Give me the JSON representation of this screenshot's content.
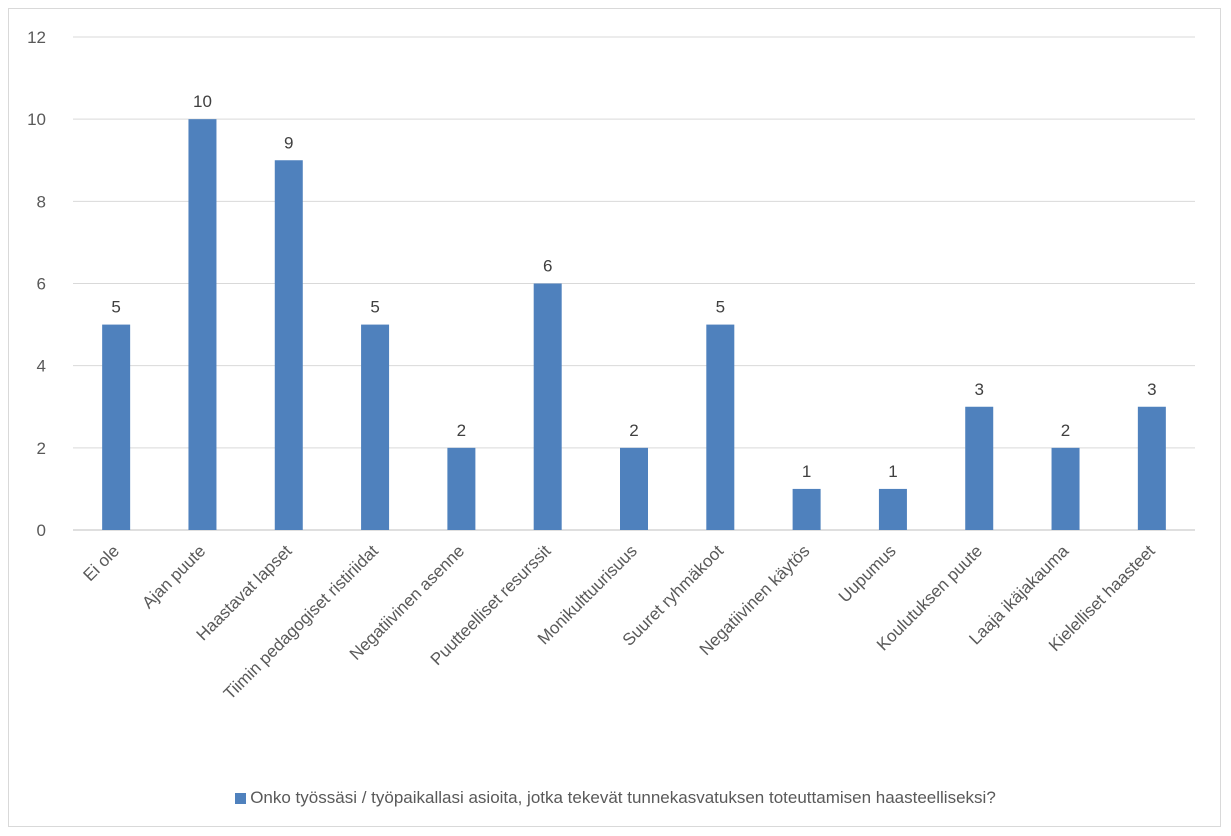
{
  "chart_data": {
    "type": "bar",
    "categories": [
      "Ei ole",
      "Ajan puute",
      "Haastavat lapset",
      "Tiimin pedagogiset ristiriidat",
      "Negatiivinen asenne",
      "Puutteelliset resurssit",
      "Monikulttuurisuus",
      "Suuret ryhmäkoot",
      "Negatiivinen käytös",
      "Uupumus",
      "Koulutuksen puute",
      "Laaja ikäjakauma",
      "Kielelliset haasteet"
    ],
    "series": [
      {
        "name": "Onko työssäsi / työpaikallasi asioita, jotka tekevät tunnekasvatuksen toteuttamisen haasteelliseksi?",
        "values": [
          5,
          10,
          9,
          5,
          2,
          6,
          2,
          5,
          1,
          1,
          3,
          2,
          3
        ]
      }
    ],
    "yticks": [
      "0",
      "2",
      "4",
      "6",
      "8",
      "10",
      "12"
    ],
    "ylim": [
      0,
      12
    ],
    "grid": true,
    "legend_position": "bottom",
    "data_labels": true,
    "colors": {
      "bar": "#4f81bd",
      "grid": "#d9d9d9",
      "axis": "#bfbfbf"
    }
  }
}
